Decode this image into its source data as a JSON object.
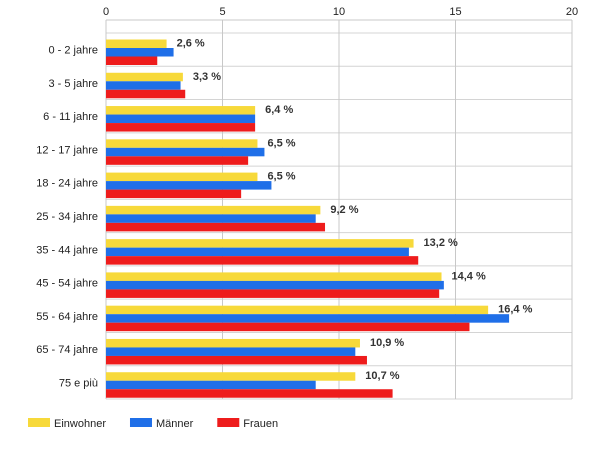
{
  "chart_data": {
    "type": "bar",
    "orientation": "horizontal",
    "title": "",
    "xlabel": "",
    "ylabel": "",
    "xlim": [
      0,
      20
    ],
    "x_ticks": [
      "0",
      "5",
      "10",
      "15",
      "20"
    ],
    "grid": true,
    "legend_position": "bottom-left",
    "categories": [
      "0 - 2 jahre",
      "3 - 5 jahre",
      "6 - 11 jahre",
      "12 - 17 jahre",
      "18 - 24 jahre",
      "25 - 34 jahre",
      "35 - 44 jahre",
      "45 - 54 jahre",
      "55 - 64 jahre",
      "65 - 74 jahre",
      "75 e più"
    ],
    "series": [
      {
        "name": "Einwohner",
        "color": "#f7d93a",
        "values": [
          2.6,
          3.3,
          6.4,
          6.5,
          6.5,
          9.2,
          13.2,
          14.4,
          16.4,
          10.9,
          10.7
        ],
        "labels": [
          "2,6 %",
          "3,3 %",
          "6,4 %",
          "6,5 %",
          "6,5 %",
          "9,2 %",
          "13,2 %",
          "14,4 %",
          "16,4 %",
          "10,9 %",
          "10,7 %"
        ]
      },
      {
        "name": "Männer",
        "color": "#1f6fe8",
        "values": [
          2.9,
          3.2,
          6.4,
          6.8,
          7.1,
          9.0,
          13.0,
          14.5,
          17.3,
          10.7,
          9.0
        ]
      },
      {
        "name": "Frauen",
        "color": "#ee1c1c",
        "values": [
          2.2,
          3.4,
          6.4,
          6.1,
          5.8,
          9.4,
          13.4,
          14.3,
          15.6,
          11.2,
          12.3
        ]
      }
    ]
  }
}
